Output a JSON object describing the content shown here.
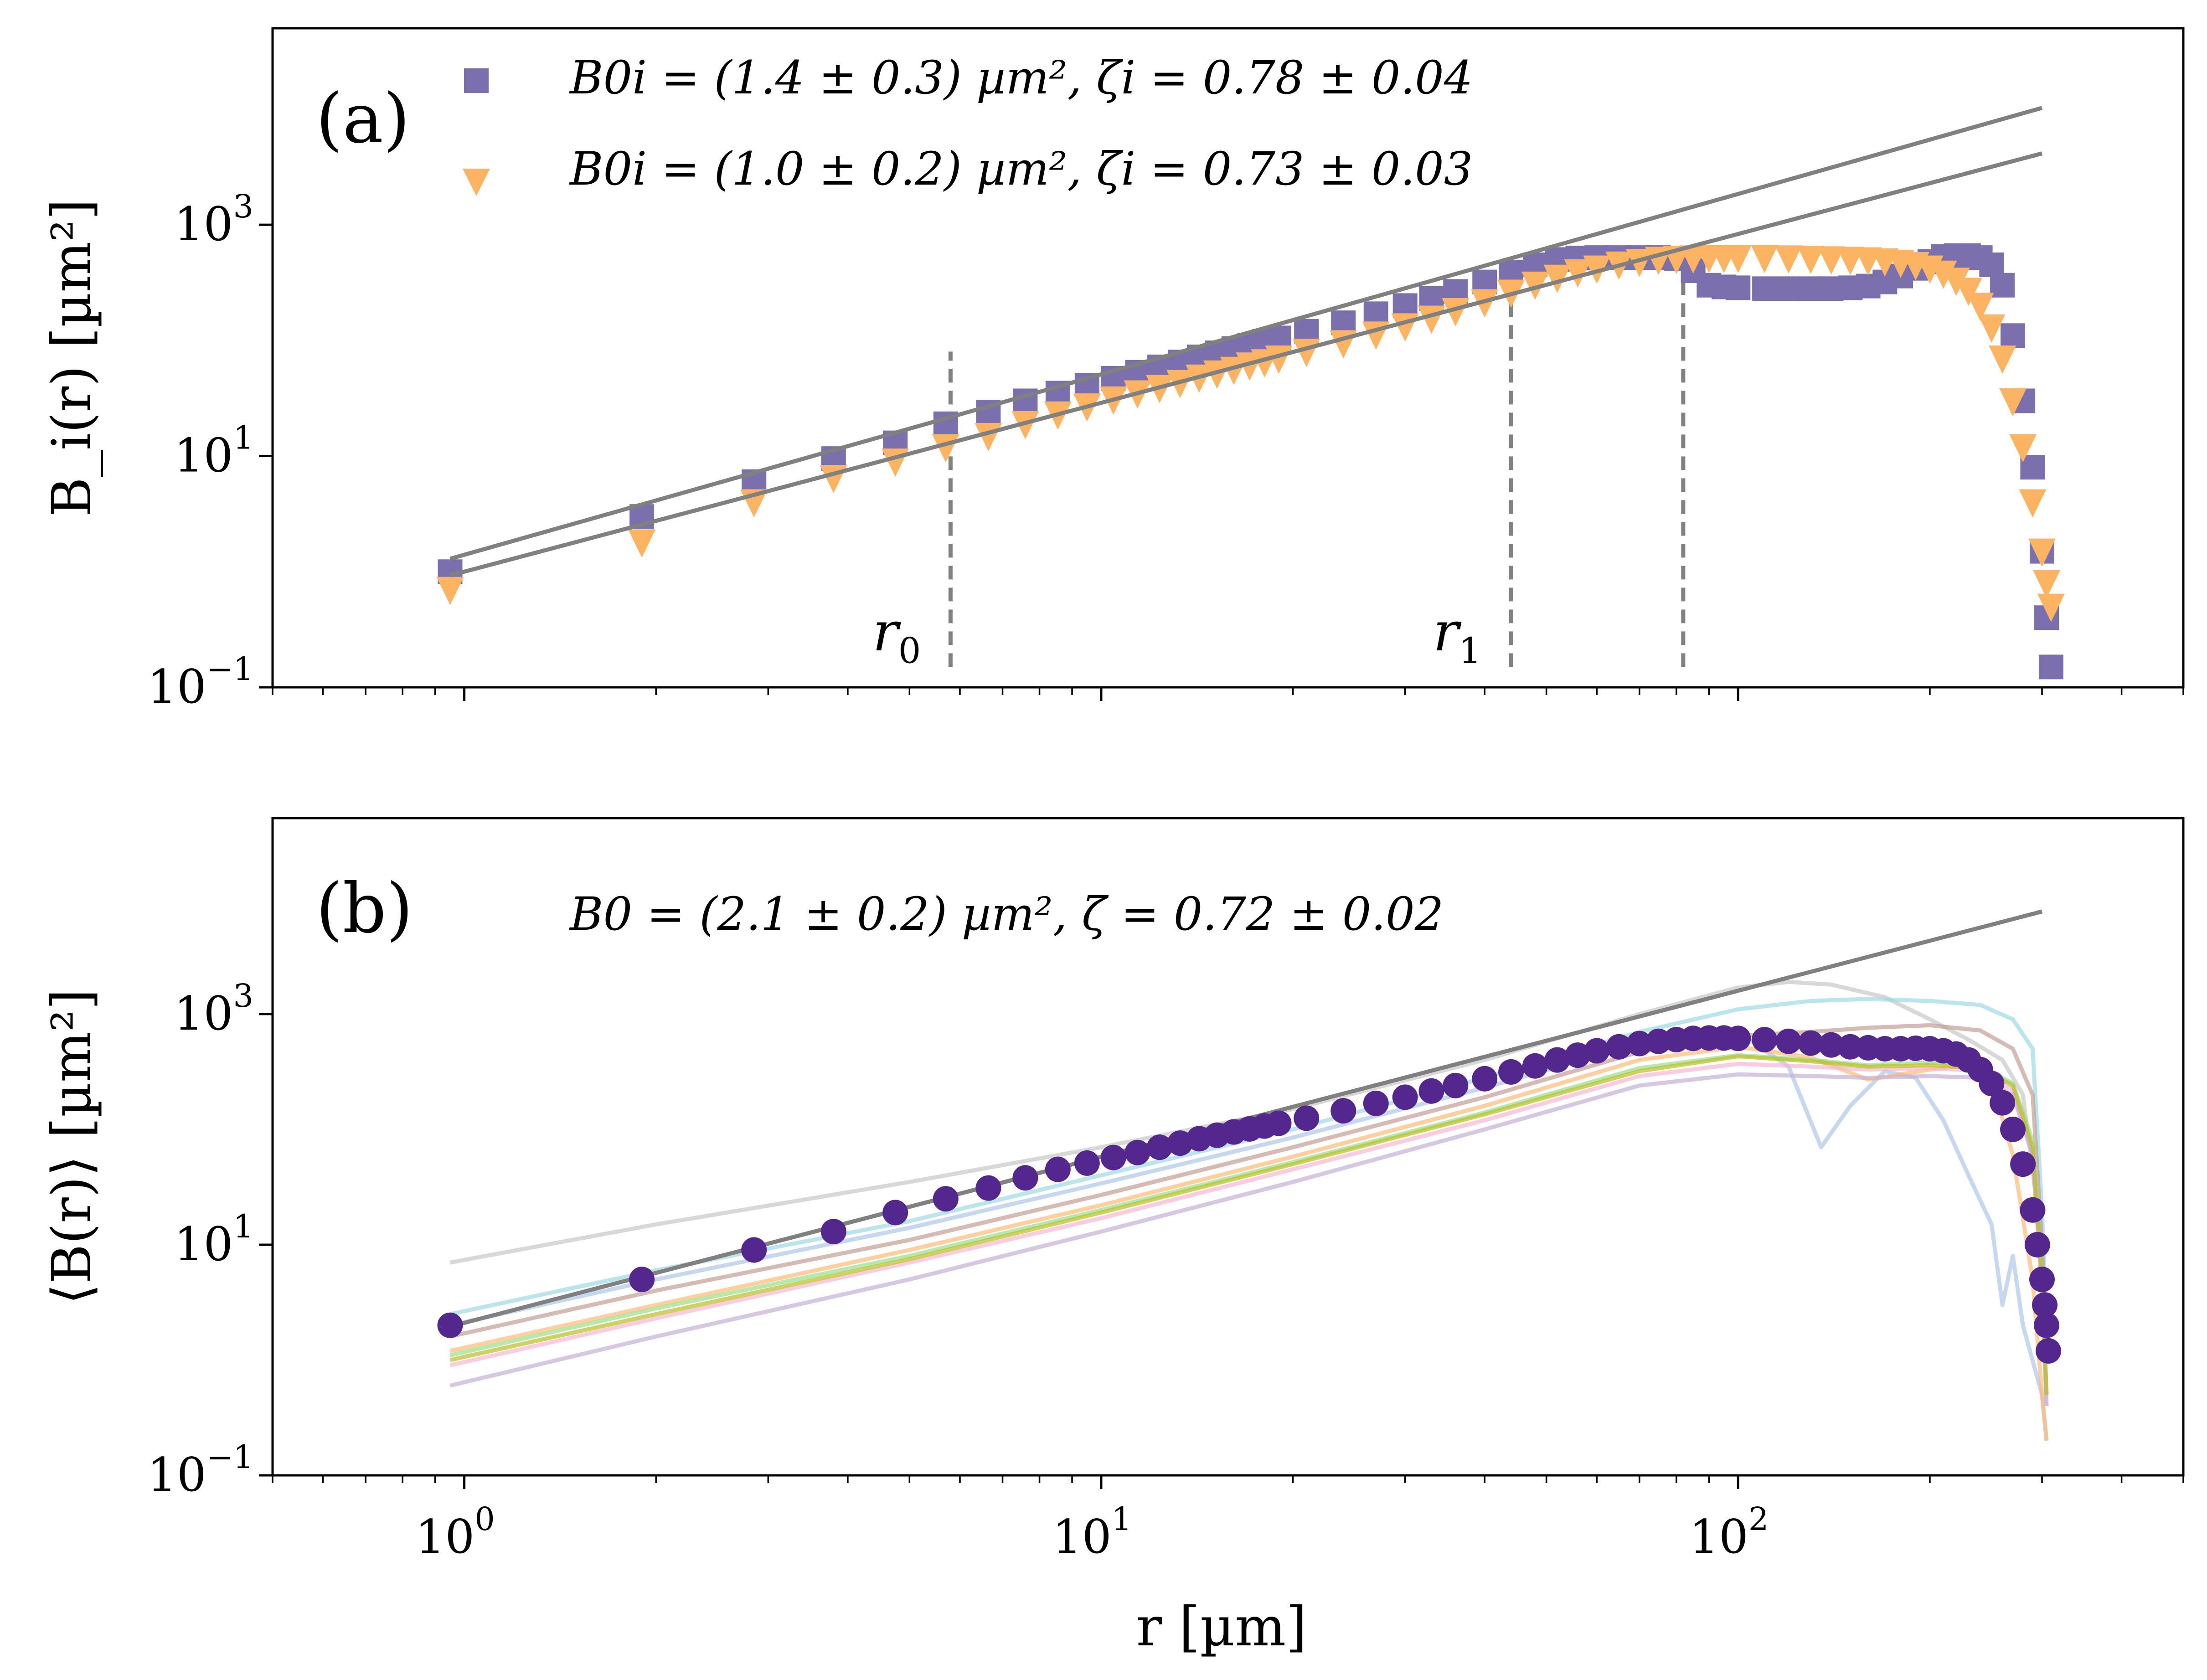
{
  "figure": {
    "x_label": "r [µm]"
  },
  "chart_data": [
    {
      "type": "scatter",
      "panel_label": "(a)",
      "ylabel": "B_i(r) [µm²]",
      "xscale": "log",
      "yscale": "log",
      "xlim": [
        0.5,
        500
      ],
      "ylim": [
        0.1,
        50000
      ],
      "x_ticks": [
        {
          "base": "10",
          "exp": "0"
        },
        {
          "base": "10",
          "exp": "1"
        },
        {
          "base": "10",
          "exp": "2"
        }
      ],
      "y_ticks": [
        {
          "value": 0.1,
          "base": "10",
          "exp": "−1"
        },
        {
          "value": 10,
          "base": "10",
          "exp": "1"
        },
        {
          "value": 1000,
          "base": "10",
          "exp": "3"
        }
      ],
      "vlines": [
        {
          "name": "r0",
          "label_base": "r",
          "label_sub": "0",
          "x": 5.8,
          "y_range": [
            0.15,
            80
          ]
        },
        {
          "name": "r1",
          "label_base": "r",
          "label_sub": "1",
          "x": 44,
          "y_range": [
            0.15,
            500
          ]
        },
        {
          "name": "r-end",
          "label_base": "",
          "label_sub": "",
          "x": 82,
          "y_range": [
            0.15,
            500
          ]
        }
      ],
      "series": [
        {
          "name": "B0i = (1.4 ± 0.3) µm², ζi = 0.78 ± 0.04",
          "legend_text": "B0i = (1.4 ± 0.3) µm², ζi = 0.78 ± 0.04",
          "marker": "square",
          "color": "#7b6fad",
          "x": [
            0.95,
            1.9,
            2.85,
            3.8,
            4.75,
            5.7,
            6.65,
            7.6,
            8.55,
            9.5,
            10.45,
            11.4,
            12.35,
            13.3,
            14.25,
            15.2,
            16.15,
            17.1,
            18.05,
            19,
            21,
            24,
            27,
            30,
            33,
            36,
            40,
            44,
            48,
            52,
            56,
            60,
            65,
            70,
            75,
            80,
            85,
            90,
            95,
            100,
            110,
            120,
            130,
            140,
            150,
            160,
            170,
            180,
            190,
            200,
            210,
            220,
            230,
            240,
            250,
            260,
            270,
            280,
            290,
            300,
            305,
            310
          ],
          "y": [
            1.0,
            3.0,
            6.0,
            9.5,
            13,
            19,
            24,
            30,
            35,
            41,
            47,
            53,
            59,
            65,
            72,
            78,
            85,
            91,
            98,
            105,
            120,
            142,
            170,
            200,
            230,
            265,
            320,
            390,
            450,
            500,
            515,
            520,
            520,
            520,
            520,
            510,
            400,
            300,
            290,
            285,
            280,
            280,
            280,
            280,
            285,
            295,
            320,
            360,
            420,
            480,
            530,
            540,
            540,
            520,
            450,
            300,
            110,
            30,
            8,
            1.5,
            0.4,
            0.15
          ],
          "fit": {
            "B0": 1.4,
            "zeta": 0.78,
            "x_range": [
              0.95,
              300
            ]
          }
        },
        {
          "name": "B0i = (1.0 ± 0.2) µm², ζi = 0.73 ± 0.03",
          "legend_text": "B0i = (1.0 ± 0.2) µm², ζi = 0.73 ± 0.03",
          "marker": "triangle-down",
          "color": "#fdb462",
          "x": [
            0.95,
            1.9,
            2.85,
            3.8,
            4.75,
            5.7,
            6.65,
            7.6,
            8.55,
            9.5,
            10.45,
            11.4,
            12.35,
            13.3,
            14.25,
            15.2,
            16.15,
            17.1,
            18.05,
            19,
            21,
            24,
            27,
            30,
            33,
            36,
            40,
            44,
            48,
            52,
            56,
            60,
            65,
            70,
            75,
            80,
            85,
            90,
            95,
            100,
            110,
            120,
            130,
            140,
            150,
            160,
            170,
            180,
            190,
            200,
            210,
            220,
            230,
            240,
            250,
            260,
            270,
            280,
            290,
            300,
            305,
            310
          ],
          "y": [
            0.7,
            1.8,
            4.0,
            6.5,
            9.0,
            12,
            15,
            19,
            23,
            27,
            31,
            35,
            39,
            43,
            48,
            52,
            56,
            61,
            65,
            70,
            80,
            95,
            113,
            133,
            155,
            180,
            215,
            260,
            305,
            350,
            390,
            420,
            455,
            480,
            500,
            510,
            515,
            520,
            520,
            520,
            520,
            515,
            510,
            505,
            500,
            495,
            485,
            470,
            450,
            420,
            380,
            330,
            270,
            200,
            130,
            70,
            30,
            12,
            4,
            1.5,
            0.8,
            0.5
          ],
          "fit": {
            "B0": 1.0,
            "zeta": 0.73,
            "x_range": [
              0.95,
              300
            ]
          }
        }
      ]
    },
    {
      "type": "line",
      "panel_label": "(b)",
      "ylabel": "⟨B(r)⟩ [µm²]",
      "xscale": "log",
      "yscale": "log",
      "xlim": [
        0.5,
        500
      ],
      "ylim": [
        0.1,
        50000
      ],
      "x_ticks": [
        {
          "base": "10",
          "exp": "0"
        },
        {
          "base": "10",
          "exp": "1"
        },
        {
          "base": "10",
          "exp": "2"
        }
      ],
      "y_ticks": [
        {
          "value": 0.1,
          "base": "10",
          "exp": "−1"
        },
        {
          "value": 10,
          "base": "10",
          "exp": "1"
        },
        {
          "value": 1000,
          "base": "10",
          "exp": "3"
        }
      ],
      "annotation": "B0 = (2.1 ± 0.2) µm², ζ = 0.72 ± 0.02",
      "fit": {
        "B0": 2.1,
        "zeta": 0.72,
        "x_range": [
          0.95,
          300
        ],
        "color": "#808080"
      },
      "mean_series": {
        "name": "mean",
        "marker": "circle",
        "color": "#54278f",
        "x": [
          0.95,
          1.9,
          2.85,
          3.8,
          4.75,
          5.7,
          6.65,
          7.6,
          8.55,
          9.5,
          10.45,
          11.4,
          12.35,
          13.3,
          14.25,
          15.2,
          16.15,
          17.1,
          18.05,
          19,
          21,
          24,
          27,
          30,
          33,
          36,
          40,
          44,
          48,
          52,
          56,
          60,
          65,
          70,
          75,
          80,
          85,
          90,
          95,
          100,
          110,
          120,
          130,
          140,
          150,
          160,
          170,
          180,
          190,
          200,
          210,
          220,
          230,
          240,
          250,
          260,
          270,
          280,
          290,
          295,
          300,
          303,
          305,
          307
        ],
        "y": [
          2.0,
          5.0,
          9.0,
          13,
          19,
          25,
          31,
          38,
          45,
          51,
          57,
          63,
          70,
          76,
          83,
          89,
          95,
          101,
          107,
          113,
          125,
          145,
          168,
          190,
          215,
          240,
          275,
          315,
          355,
          400,
          440,
          480,
          520,
          555,
          580,
          600,
          615,
          620,
          620,
          615,
          600,
          580,
          560,
          540,
          520,
          510,
          500,
          500,
          505,
          500,
          480,
          450,
          400,
          330,
          250,
          170,
          100,
          50,
          20,
          10,
          5,
          3,
          2,
          1.2
        ]
      },
      "samples": [
        {
          "color": "#c7c7c7",
          "x": [
            0.95,
            2,
            5,
            10,
            20,
            40,
            70,
            100,
            120,
            140,
            170,
            200,
            230,
            260,
            280,
            300,
            305
          ],
          "y": [
            7,
            15,
            35,
            70,
            150,
            400,
            1000,
            1700,
            1900,
            1800,
            1400,
            900,
            600,
            400,
            200,
            10,
            2
          ]
        },
        {
          "color": "#9edae5",
          "x": [
            0.95,
            2,
            5,
            10,
            20,
            40,
            70,
            100,
            130,
            160,
            200,
            240,
            270,
            290,
            300,
            305
          ],
          "y": [
            2.5,
            6,
            16,
            40,
            100,
            280,
            700,
            1100,
            1300,
            1350,
            1300,
            1200,
            900,
            500,
            20,
            2
          ]
        },
        {
          "color": "#aec7e8",
          "x": [
            0.95,
            2,
            5,
            10,
            20,
            40,
            70,
            100,
            120,
            135,
            150,
            170,
            190,
            210,
            230,
            250,
            260,
            270,
            280,
            300,
            305
          ],
          "y": [
            2,
            5,
            14,
            34,
            85,
            230,
            550,
            700,
            350,
            70,
            160,
            320,
            280,
            120,
            40,
            15,
            3,
            8,
            2,
            0.5,
            0.2
          ]
        },
        {
          "color": "#c49c94",
          "x": [
            0.95,
            2,
            5,
            10,
            20,
            40,
            70,
            100,
            130,
            160,
            200,
            240,
            270,
            290,
            300,
            305
          ],
          "y": [
            1.6,
            4,
            11,
            27,
            70,
            190,
            470,
            650,
            700,
            760,
            800,
            720,
            500,
            200,
            10,
            1
          ]
        },
        {
          "color": "#ffbb78",
          "x": [
            0.95,
            2,
            5,
            10,
            20,
            40,
            70,
            100,
            130,
            160,
            200,
            230,
            250,
            270,
            290,
            300,
            305
          ],
          "y": [
            1.2,
            3,
            9,
            22,
            58,
            160,
            400,
            520,
            420,
            270,
            330,
            360,
            260,
            60,
            5,
            0.5,
            0.2
          ]
        },
        {
          "color": "#98df8a",
          "x": [
            0.95,
            2,
            5,
            10,
            20,
            40,
            70,
            100,
            130,
            160,
            200,
            240,
            270,
            290,
            300,
            305
          ],
          "y": [
            1.1,
            2.8,
            8,
            20,
            52,
            140,
            340,
            440,
            400,
            360,
            380,
            360,
            250,
            80,
            5,
            0.5
          ]
        },
        {
          "color": "#f7b6d2",
          "x": [
            0.95,
            2,
            5,
            10,
            20,
            40,
            70,
            100,
            130,
            160,
            200,
            240,
            270,
            290,
            300,
            305
          ],
          "y": [
            0.9,
            2.3,
            7,
            17,
            45,
            120,
            290,
            370,
            350,
            330,
            340,
            320,
            220,
            60,
            4,
            0.4
          ]
        },
        {
          "color": "#c5b0d5",
          "x": [
            0.95,
            2,
            5,
            10,
            20,
            40,
            70,
            100,
            130,
            160,
            200,
            240,
            270,
            290,
            300,
            305
          ],
          "y": [
            0.6,
            1.6,
            5,
            13,
            35,
            100,
            240,
            300,
            290,
            280,
            290,
            280,
            200,
            60,
            4,
            0.4
          ]
        },
        {
          "color": "#bcbd22",
          "x": [
            0.95,
            2,
            5,
            10,
            20,
            40,
            70,
            100,
            130,
            160,
            200,
            240,
            270,
            290,
            300,
            305
          ],
          "y": [
            1.0,
            2.5,
            7.5,
            19,
            50,
            135,
            320,
            430,
            390,
            350,
            360,
            340,
            240,
            70,
            5,
            0.5
          ]
        }
      ]
    }
  ]
}
